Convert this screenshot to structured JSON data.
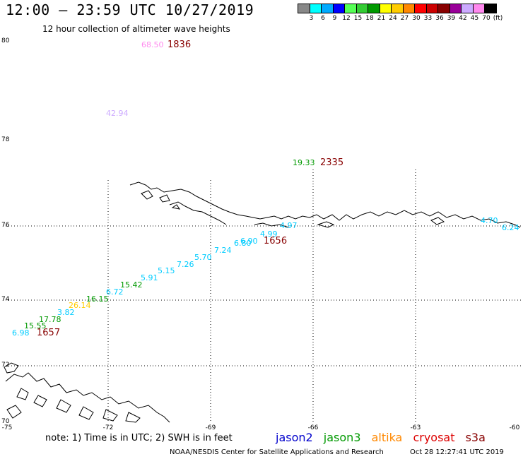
{
  "title": "12:00 – 23:59 UTC 10/27/2019",
  "subtitle": "12 hour collection of altimeter wave heights",
  "colorbar": {
    "swatches": [
      "#888888",
      "#00ffff",
      "#00aaff",
      "#0000ff",
      "#55ff55",
      "#33cc33",
      "#009900",
      "#ffff00",
      "#ffcc00",
      "#ff8800",
      "#ff0000",
      "#cc0000",
      "#880000",
      "#990099",
      "#ccaaff",
      "#ff88ee",
      "#000000"
    ],
    "labels": [
      "3",
      "6",
      "9",
      "12",
      "15",
      "18",
      "21",
      "24",
      "27",
      "30",
      "33",
      "36",
      "39",
      "42",
      "45",
      "70",
      "(ft)"
    ]
  },
  "axes": {
    "y_ticks": [
      "80",
      "78",
      "76",
      "74",
      "72",
      "70"
    ],
    "x_ticks": [
      "-75",
      "-72",
      "-69",
      "-66",
      "-63",
      "-60"
    ]
  },
  "note": "note:  1) Time is in UTC;  2) SWH is in feet",
  "satellites": [
    {
      "name": "jason2",
      "color": "#0000cc"
    },
    {
      "name": "jason3",
      "color": "#009900"
    },
    {
      "name": "altika",
      "color": "#ff8800"
    },
    {
      "name": "cryosat",
      "color": "#dd0000"
    },
    {
      "name": "s3a",
      "color": "#880000"
    }
  ],
  "credit": "NOAA/NESDIS Center for Satellite Applications and Research",
  "timestamp": "Oct 28 12:27:41 UTC 2019",
  "wave_heights": [
    {
      "value": "68.50",
      "color": "#ff88ee"
    },
    {
      "value": "42.94",
      "color": "#ccaaff"
    },
    {
      "value": "19.33",
      "color": "#009900"
    },
    {
      "value": "4.70",
      "color": "#00ccff"
    },
    {
      "value": "6.24",
      "color": "#00ccff"
    },
    {
      "value": "4.99",
      "color": "#00ccff"
    },
    {
      "value": "4.97",
      "color": "#00ccff"
    },
    {
      "value": "6.90",
      "color": "#00ccff"
    },
    {
      "value": "6.80",
      "color": "#00ccff"
    },
    {
      "value": "7.24",
      "color": "#00ccff"
    },
    {
      "value": "5.70",
      "color": "#00ccff"
    },
    {
      "value": "7.26",
      "color": "#00ccff"
    },
    {
      "value": "5.15",
      "color": "#00ccff"
    },
    {
      "value": "5.91",
      "color": "#00ccff"
    },
    {
      "value": "15.42",
      "color": "#009900"
    },
    {
      "value": "6.72",
      "color": "#00ccff"
    },
    {
      "value": "16.15",
      "color": "#009900"
    },
    {
      "value": "26.14",
      "color": "#ffcc00"
    },
    {
      "value": "3.82",
      "color": "#00ccff"
    },
    {
      "value": "17.78",
      "color": "#009900"
    },
    {
      "value": "15.55",
      "color": "#009900"
    },
    {
      "value": "6.98",
      "color": "#00ccff"
    }
  ],
  "pass_times": [
    {
      "value": "1836",
      "color": "#880000"
    },
    {
      "value": "2335",
      "color": "#880000"
    },
    {
      "value": "1656",
      "color": "#880000"
    },
    {
      "value": "1657",
      "color": "#880000"
    }
  ]
}
